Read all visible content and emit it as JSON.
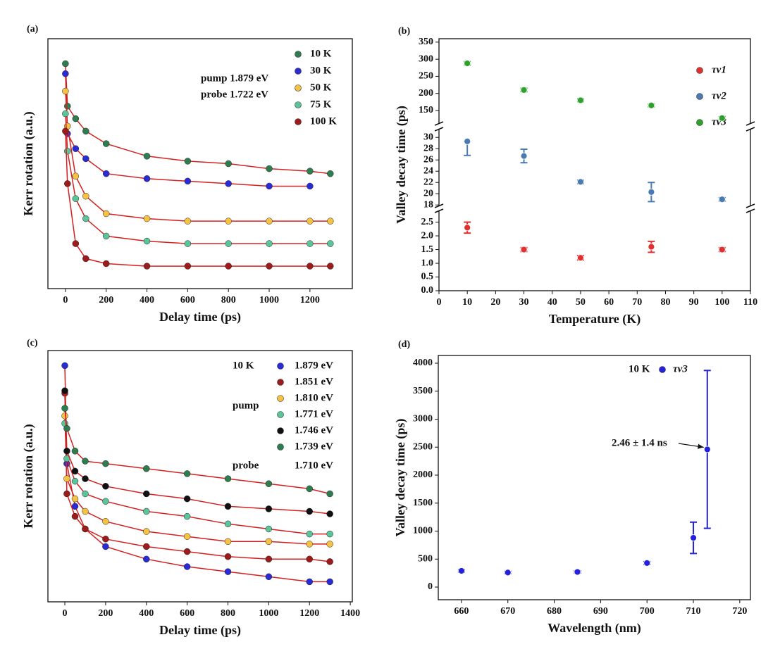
{
  "chart_data": [
    {
      "type": "line",
      "label": "(a)",
      "xlabel": "Delay time (ps)",
      "ylabel": "Kerr rotation (a.u.)",
      "xlim": [
        -86,
        1408
      ],
      "xticks": [
        0,
        200,
        400,
        600,
        800,
        1000,
        1200
      ],
      "ylim": [
        0,
        1
      ],
      "x": [
        0,
        10,
        50,
        100,
        200,
        400,
        600,
        800,
        1000,
        1200,
        1300
      ],
      "series": [
        {
          "name": "10 K",
          "color": "#2e7d4f",
          "values": [
            0.9,
            0.73,
            0.68,
            0.63,
            0.58,
            0.53,
            0.51,
            0.5,
            0.48,
            0.47,
            0.46
          ]
        },
        {
          "name": "30 K",
          "color": "#2b2bd6",
          "values": [
            0.86,
            0.62,
            0.56,
            0.52,
            0.46,
            0.44,
            0.43,
            0.42,
            0.41,
            0.41,
            null
          ]
        },
        {
          "name": "50 K",
          "color": "#f5c242",
          "values": [
            0.79,
            0.65,
            0.45,
            0.37,
            0.3,
            0.28,
            0.27,
            0.27,
            0.27,
            0.27,
            0.27
          ]
        },
        {
          "name": "75 K",
          "color": "#5cc49a",
          "values": [
            0.7,
            0.55,
            0.36,
            0.28,
            0.21,
            0.19,
            0.18,
            0.18,
            0.18,
            0.18,
            0.18
          ]
        },
        {
          "name": "100 K",
          "color": "#9e1b1b",
          "values": [
            0.63,
            0.42,
            0.18,
            0.12,
            0.1,
            0.09,
            0.09,
            0.09,
            0.09,
            0.09,
            0.09
          ]
        }
      ],
      "annotations": [
        "pump  1.879 eV",
        "probe  1.722 eV"
      ]
    },
    {
      "type": "scatter",
      "label": "(b)",
      "xlabel": "Temperature (K)",
      "ylabel": "Valley decay time (ps)",
      "xlim": [
        0,
        110
      ],
      "xticks": [
        0,
        10,
        20,
        30,
        40,
        50,
        60,
        70,
        80,
        90,
        100,
        110
      ],
      "y_segments": [
        {
          "ylim": [
            0,
            2.9
          ],
          "yticks": [
            {
              "value": 0,
              "label": "0.0"
            },
            0.5,
            {
              "value": 1,
              "label": "1.0"
            },
            1.5,
            {
              "value": 2,
              "label": "2.0"
            },
            2.5
          ]
        },
        {
          "ylim": [
            17.9,
            31.4
          ],
          "yticks": [
            18,
            20,
            22,
            24,
            26,
            28,
            30
          ]
        },
        {
          "ylim": [
            113,
            360
          ],
          "yticks": [
            150,
            200,
            250,
            300,
            350
          ]
        }
      ],
      "x": [
        10,
        30,
        50,
        75,
        100
      ],
      "series": [
        {
          "name": "τv1",
          "color": "#e03030",
          "values": [
            2.3,
            1.5,
            1.2,
            1.6,
            1.5
          ],
          "errors": [
            0.2,
            0.07,
            0.08,
            0.2,
            0.07
          ]
        },
        {
          "name": "τv2",
          "color": "#4a7ab0",
          "values": [
            29.3,
            26.7,
            22.1,
            20.3,
            19
          ],
          "errors": [
            2.5,
            1.2,
            0.3,
            1.7,
            0.3
          ]
        },
        {
          "name": "τv3",
          "color": "#2ea02e",
          "values": [
            288,
            210,
            180,
            165,
            128
          ],
          "errors": [
            5,
            5,
            4,
            4,
            4
          ]
        }
      ]
    },
    {
      "type": "line",
      "label": "(c)",
      "xlabel": "Delay time (ps)",
      "ylabel": "Kerr rotation (a.u.)",
      "xlim": [
        -83,
        1410
      ],
      "xticks": [
        0,
        200,
        400,
        600,
        800,
        1000,
        1200,
        1400
      ],
      "ylim": [
        0,
        1
      ],
      "x": [
        0,
        10,
        50,
        100,
        200,
        400,
        600,
        800,
        1000,
        1200,
        1300
      ],
      "series": [
        {
          "name": "1.879 eV",
          "color": "#2b2bd6",
          "values": [
            0.94,
            0.55,
            0.38,
            0.29,
            0.22,
            0.17,
            0.14,
            0.12,
            0.1,
            0.08,
            0.08
          ]
        },
        {
          "name": "1.851 eV",
          "color": "#9e1b1b",
          "values": [
            0.83,
            0.43,
            0.34,
            0.29,
            0.25,
            0.22,
            0.2,
            0.18,
            0.17,
            0.17,
            0.16
          ]
        },
        {
          "name": "1.810 eV",
          "color": "#f5c242",
          "values": [
            0.74,
            0.49,
            0.41,
            0.36,
            0.32,
            0.28,
            0.26,
            0.24,
            0.24,
            0.23,
            0.23
          ]
        },
        {
          "name": "1.771 eV",
          "color": "#5cc49a",
          "values": [
            0.71,
            0.57,
            0.48,
            0.43,
            0.4,
            0.36,
            0.34,
            0.31,
            0.29,
            0.27,
            0.27
          ]
        },
        {
          "name": "1.746 eV",
          "color": "#111111",
          "values": [
            0.84,
            0.6,
            0.52,
            0.49,
            0.46,
            0.43,
            0.41,
            0.38,
            0.37,
            0.36,
            0.35
          ]
        },
        {
          "name": "1.739 eV",
          "color": "#2e7d4f",
          "values": [
            0.77,
            0.69,
            0.6,
            0.56,
            0.55,
            0.53,
            0.51,
            0.49,
            0.47,
            0.45,
            0.43
          ]
        }
      ],
      "annotations": [
        "10 K",
        "pump",
        "probe",
        "1.710 eV"
      ]
    },
    {
      "type": "scatter",
      "label": "(d)",
      "xlabel": "Wavelength (nm)",
      "ylabel": "Valley decay time (ps)",
      "xlim": [
        655,
        722.3
      ],
      "xticks": [
        660,
        670,
        680,
        690,
        700,
        710,
        720
      ],
      "ylim": [
        -226,
        4138
      ],
      "yticks": [
        0,
        500,
        1000,
        1500,
        2000,
        2500,
        3000,
        3500,
        4000
      ],
      "x": [
        660,
        670,
        685,
        700,
        710,
        713
      ],
      "series": [
        {
          "name": "τv3",
          "color": "#2222dd",
          "values": [
            290,
            260,
            270,
            430,
            880,
            2460
          ],
          "errors": [
            20,
            20,
            20,
            25,
            280,
            1410
          ]
        }
      ],
      "annotations": [
        "10 K",
        "2.46 ± 1.4 ns"
      ]
    }
  ]
}
